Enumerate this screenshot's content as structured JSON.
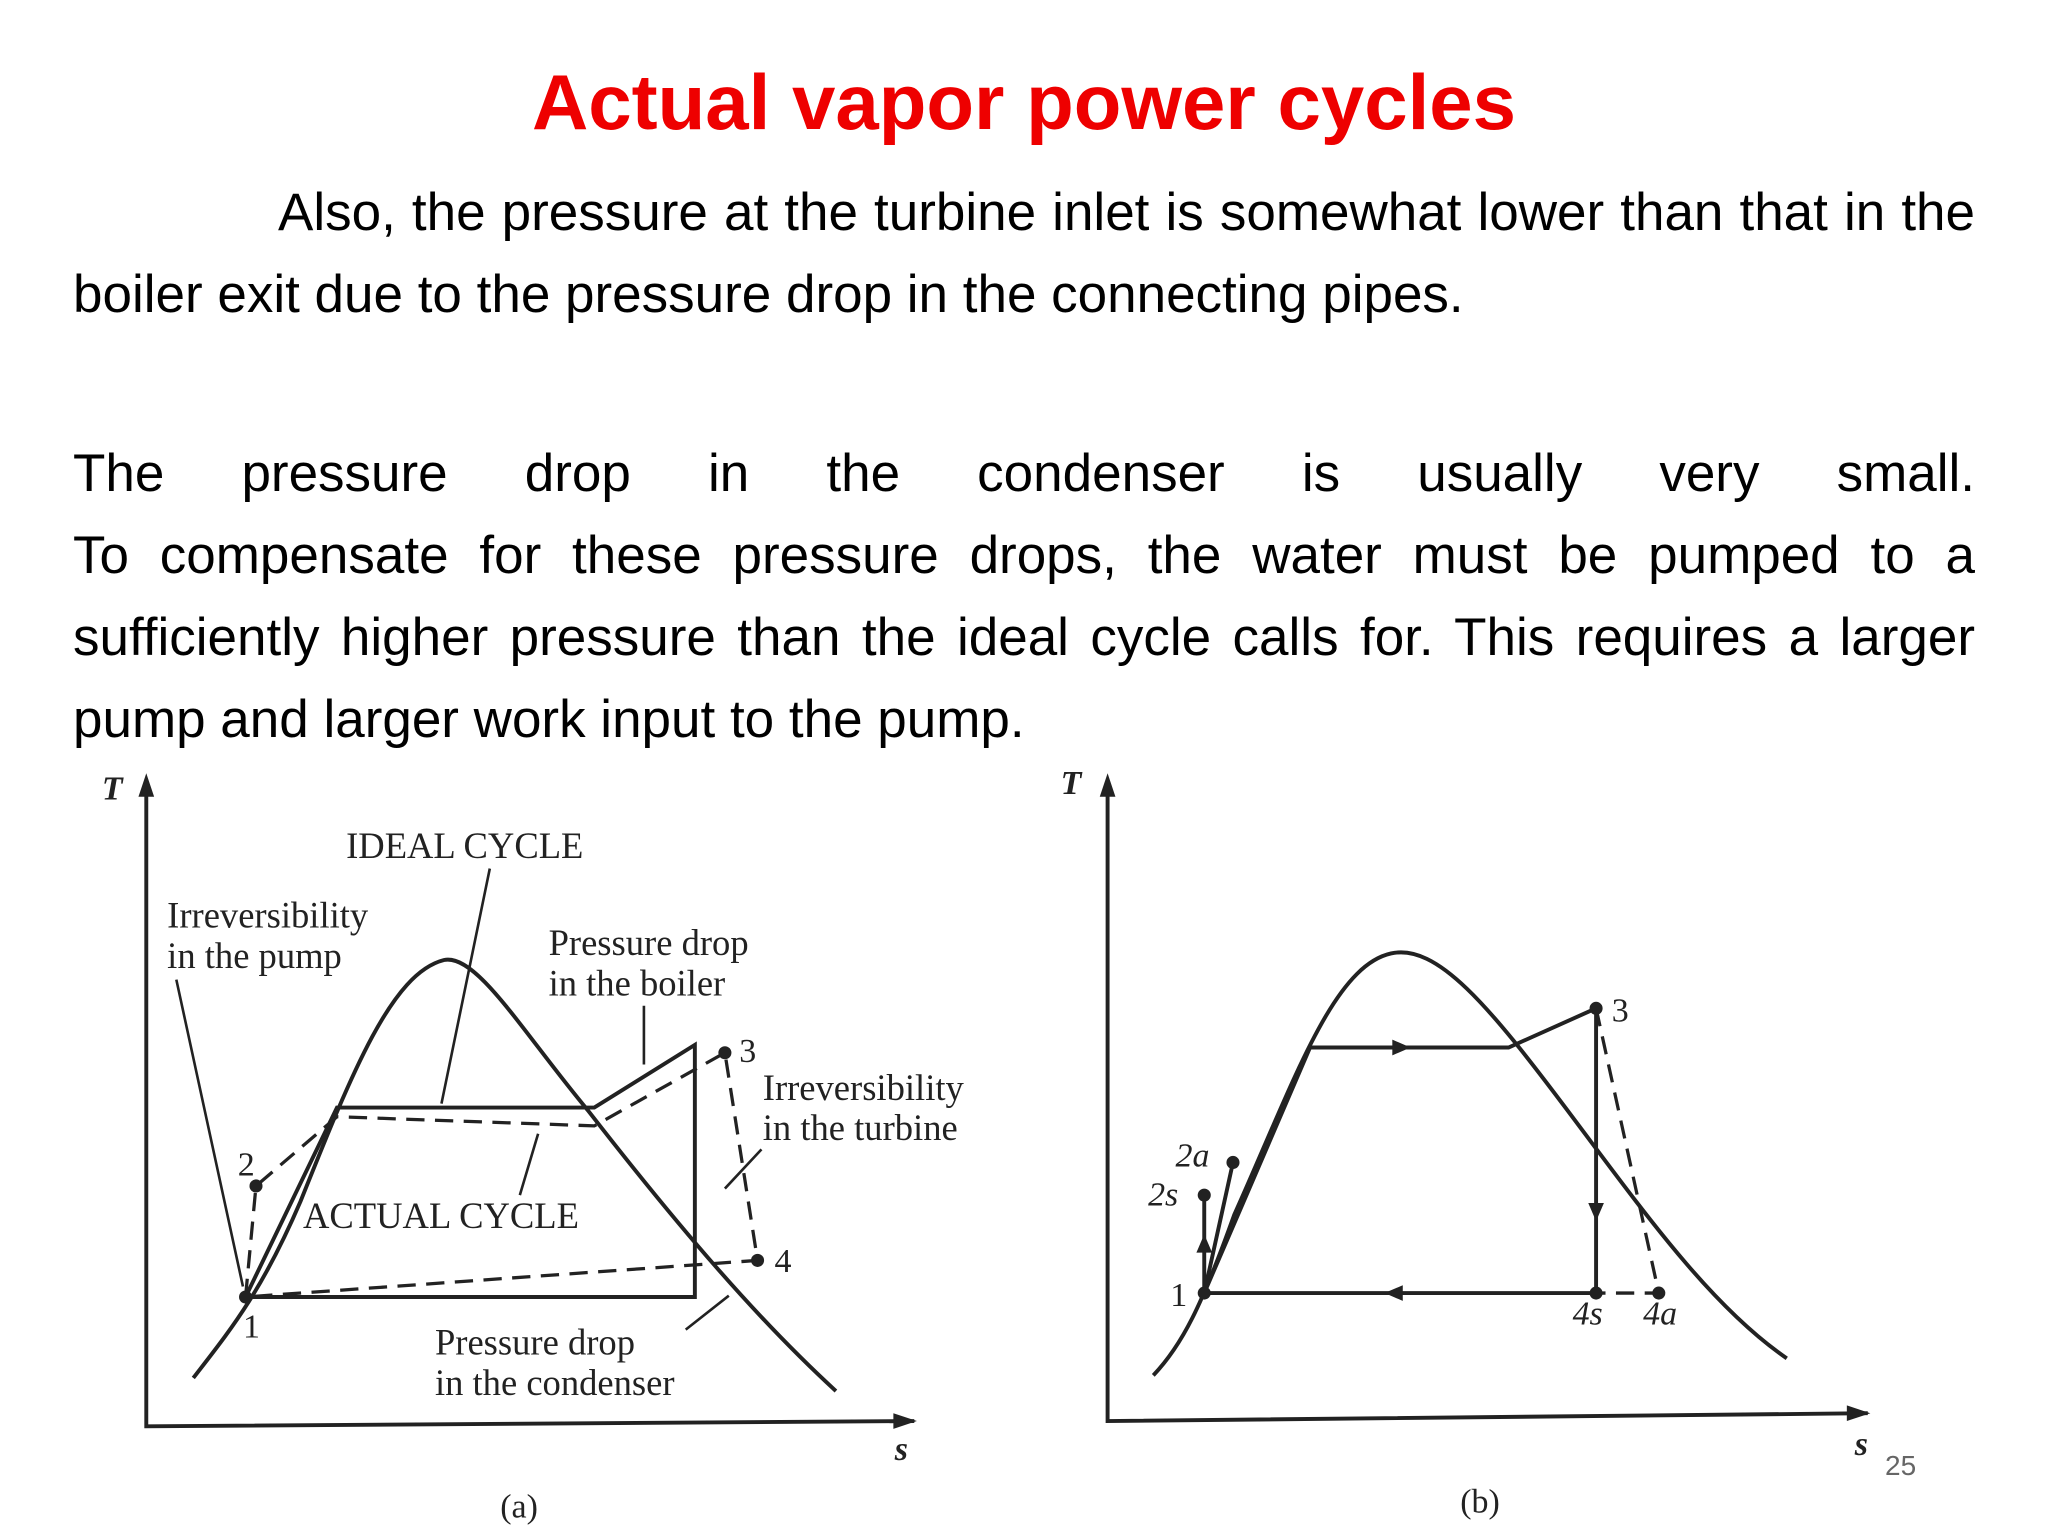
{
  "title": "Actual vapor power cycles",
  "paragraphs": [
    "Also, the pressure at the turbine inlet is somewhat lower than that in the boiler exit due to the pressure drop in the connecting pipes.",
    "The pressure drop in the condenser is usually very small.",
    "To compensate for these pressure drops, the water must be pumped to a sufficiently higher pressure than the ideal cycle calls for. This requires a larger pump and larger work input to the pump."
  ],
  "figure_a": {
    "axis_t": "T",
    "axis_s": "s",
    "caption": "(a)",
    "ideal_cycle": "IDEAL CYCLE",
    "actual_cycle": "ACTUAL CYCLE",
    "pump": [
      "Irreversibility",
      "in the pump"
    ],
    "boiler": [
      "Pressure drop",
      "in the boiler"
    ],
    "turbine": [
      "Irreversibility",
      "in the turbine"
    ],
    "condenser": [
      "Pressure drop",
      "in the condenser"
    ],
    "points": [
      "1",
      "2",
      "3",
      "4"
    ]
  },
  "figure_b": {
    "axis_t": "T",
    "axis_s": "s",
    "caption": "(b)",
    "points": [
      "1",
      "2s",
      "2a",
      "3",
      "4s",
      "4a"
    ]
  },
  "page_number": "25"
}
